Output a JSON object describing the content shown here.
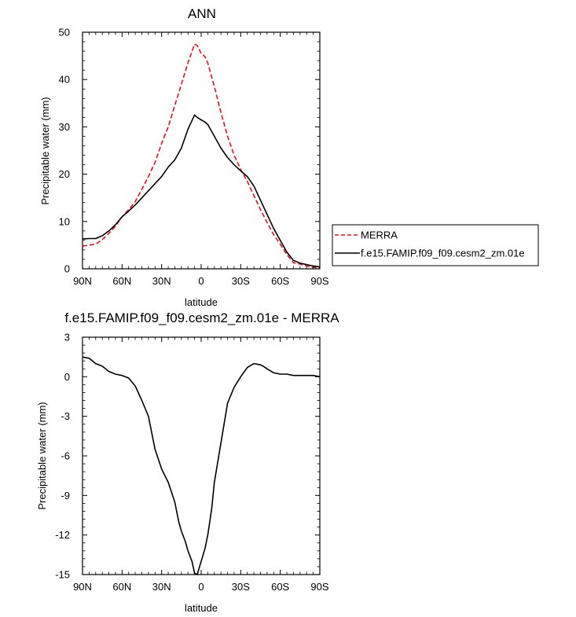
{
  "chart_data": [
    {
      "type": "line",
      "title": "ANN",
      "xlabel": "latitude",
      "ylabel": "Precipitable water (mm)",
      "xlim": [
        90,
        -90
      ],
      "ylim": [
        0,
        50
      ],
      "xticks": [
        90,
        60,
        30,
        0,
        -30,
        -60,
        -90
      ],
      "xtick_labels": [
        "90N",
        "60N",
        "30N",
        "0",
        "30S",
        "60S",
        "90S"
      ],
      "yticks": [
        0,
        10,
        20,
        30,
        40,
        50
      ],
      "ytick_labels": [
        "0",
        "10",
        "20",
        "30",
        "40",
        "50"
      ],
      "legend_position": "right",
      "series": [
        {
          "name": "MERRA",
          "color": "#e8111a",
          "dash": "dashed",
          "x": [
            90,
            85,
            80,
            75,
            70,
            65,
            60,
            55,
            50,
            45,
            40,
            35,
            30,
            25,
            20,
            15,
            10,
            5,
            3,
            0,
            -3,
            -5,
            -10,
            -15,
            -20,
            -25,
            -30,
            -35,
            -40,
            -45,
            -50,
            -55,
            -60,
            -65,
            -70,
            -75,
            -80,
            -85,
            -90
          ],
          "y": [
            4.8,
            5.0,
            5.2,
            6.2,
            7.5,
            9.0,
            11.0,
            12.5,
            14.2,
            16.8,
            19.5,
            22.5,
            26.5,
            30.0,
            34.5,
            39.0,
            43.5,
            47.5,
            47.2,
            45.5,
            44.8,
            43.5,
            38.5,
            33.0,
            28.0,
            24.0,
            21.0,
            18.5,
            15.5,
            12.5,
            9.8,
            7.2,
            5.2,
            3.0,
            1.3,
            1.0,
            0.6,
            0.3,
            0.2
          ]
        },
        {
          "name": "f.e15.FAMIP.f09_f09.cesm2_zm.01e",
          "color": "#000000",
          "dash": "solid",
          "x": [
            90,
            85,
            80,
            75,
            70,
            65,
            60,
            55,
            50,
            45,
            40,
            35,
            30,
            25,
            20,
            15,
            10,
            5,
            3,
            0,
            -3,
            -5,
            -10,
            -15,
            -20,
            -25,
            -30,
            -35,
            -40,
            -45,
            -50,
            -55,
            -60,
            -65,
            -70,
            -75,
            -80,
            -85,
            -90
          ],
          "y": [
            6.3,
            6.4,
            6.4,
            7.0,
            8.0,
            9.3,
            11.0,
            12.2,
            13.5,
            15.0,
            16.5,
            18.0,
            19.5,
            21.5,
            23.0,
            25.5,
            29.5,
            32.5,
            32.0,
            31.5,
            31.0,
            30.5,
            28.0,
            25.5,
            23.5,
            22.0,
            20.7,
            19.5,
            17.5,
            14.5,
            11.5,
            8.5,
            6.0,
            3.5,
            1.8,
            1.2,
            0.9,
            0.6,
            0.4
          ]
        }
      ]
    },
    {
      "type": "line",
      "title": "f.e15.FAMIP.f09_f09.cesm2_zm.01e - MERRA",
      "xlabel": "latitude",
      "ylabel": "Precipitable water (mm)",
      "xlim": [
        90,
        -90
      ],
      "ylim": [
        -15,
        3
      ],
      "xticks": [
        90,
        60,
        30,
        0,
        -30,
        -60,
        -90
      ],
      "xtick_labels": [
        "90N",
        "60N",
        "30N",
        "0",
        "30S",
        "60S",
        "90S"
      ],
      "yticks": [
        3,
        0,
        -3,
        -6,
        -9,
        -12,
        -15
      ],
      "ytick_labels": [
        "3",
        "0",
        "-3",
        "-6",
        "-9",
        "-12",
        "-15"
      ],
      "series": [
        {
          "color": "#000000",
          "dash": "solid",
          "x": [
            90,
            85,
            80,
            75,
            70,
            65,
            60,
            55,
            50,
            45,
            40,
            35,
            30,
            25,
            20,
            17,
            15,
            12,
            10,
            7,
            5,
            3,
            0,
            -3,
            -5,
            -8,
            -10,
            -15,
            -20,
            -25,
            -30,
            -35,
            -40,
            -45,
            -47,
            -50,
            -55,
            -60,
            -65,
            -70,
            -75,
            -80,
            -85,
            -90
          ],
          "y": [
            1.5,
            1.4,
            1.0,
            0.8,
            0.4,
            0.2,
            0.1,
            -0.1,
            -0.7,
            -1.8,
            -3.0,
            -5.5,
            -7.0,
            -8.0,
            -9.5,
            -11.0,
            -11.7,
            -12.5,
            -13.2,
            -14.0,
            -14.9,
            -15.0,
            -14.0,
            -13.0,
            -12.0,
            -10.0,
            -8.0,
            -5.0,
            -2.0,
            -0.8,
            0.0,
            0.7,
            1.0,
            0.9,
            0.8,
            0.6,
            0.3,
            0.2,
            0.2,
            0.1,
            0.1,
            0.1,
            0.1,
            0.0
          ]
        }
      ]
    }
  ]
}
